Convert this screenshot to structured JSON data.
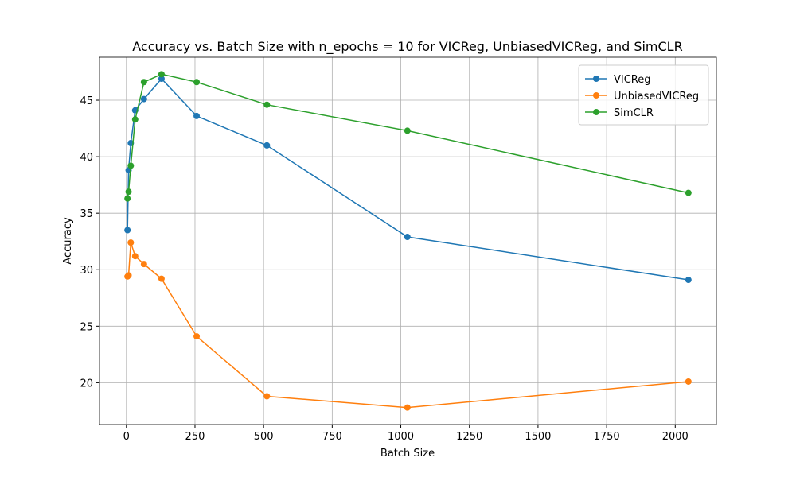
{
  "chart_data": {
    "type": "line",
    "title": "Accuracy vs. Batch Size with n_epochs = 10 for VICReg, UnbiasedVICReg, and SimCLR",
    "x_label": "Batch Size",
    "y_label": "Accuracy",
    "x": [
      4,
      8,
      16,
      32,
      64,
      128,
      256,
      512,
      1024,
      2048
    ],
    "series": [
      {
        "name": "VICReg",
        "color": "#1f77b4",
        "values": [
          33.5,
          38.8,
          41.2,
          44.1,
          45.1,
          46.9,
          43.6,
          41.0,
          32.9,
          29.1
        ]
      },
      {
        "name": "UnbiasedVICReg",
        "color": "#ff7f0e",
        "values": [
          29.4,
          29.5,
          32.4,
          31.2,
          30.5,
          29.2,
          24.1,
          18.8,
          17.8,
          20.1
        ]
      },
      {
        "name": "SimCLR",
        "color": "#2ca02c",
        "values": [
          36.3,
          36.9,
          39.2,
          43.3,
          46.6,
          47.3,
          46.6,
          44.6,
          42.3,
          36.8
        ]
      }
    ],
    "xlim": [
      -98,
      2150
    ],
    "ylim": [
      16.3,
      48.8
    ],
    "xticks": [
      0,
      250,
      500,
      750,
      1000,
      1250,
      1500,
      1750,
      2000
    ],
    "yticks": [
      20,
      25,
      30,
      35,
      40,
      45
    ],
    "grid": true,
    "legend": "upper right",
    "markers": true
  }
}
